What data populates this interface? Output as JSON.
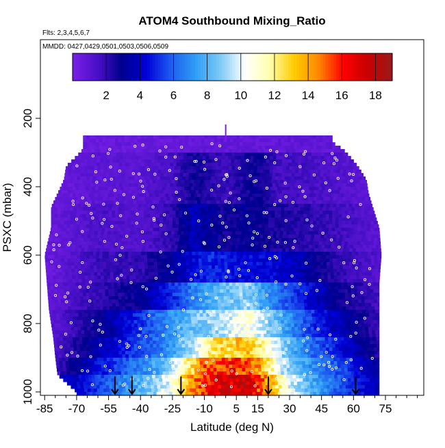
{
  "chart_data": {
    "type": "heatmap",
    "title": "ATOM4 Southbound Mixing_Ratio",
    "annotations": [
      "Flts: 2,3,4,5,6,7",
      "MMDD: 0427,0429,0501,0503,0506,0509"
    ],
    "xlabel": "Latitude (deg N)",
    "ylabel": "PSXC (mbar)",
    "xlim": [
      -87,
      93
    ],
    "ylim": [
      1010,
      -30
    ],
    "x_ticks": [
      -85,
      -70,
      -55,
      -40,
      -25,
      -10,
      5,
      15,
      30,
      45,
      60,
      75
    ],
    "x_tick_labels": [
      "-85",
      "-70",
      "-55",
      "-40",
      "-25",
      "-10",
      "5",
      "15",
      "30",
      "45",
      "60",
      "75"
    ],
    "y_ticks": [
      200,
      400,
      600,
      800,
      1000
    ],
    "y_tick_labels": [
      "200",
      "400",
      "600",
      "800",
      "1000"
    ],
    "colorbar": {
      "range": [
        0,
        19
      ],
      "ticks": [
        2,
        4,
        6,
        8,
        10,
        12,
        14,
        16,
        18
      ],
      "tick_labels": [
        "2",
        "4",
        "6",
        "8",
        "10",
        "12",
        "14",
        "16",
        "18"
      ],
      "colors": [
        "#7a1fe8",
        "#4a10c8",
        "#00008c",
        "#0000d8",
        "#1e5cf0",
        "#2f9ef5",
        "#7cc9f7",
        "#ffffff",
        "#ffffb0",
        "#ffcc00",
        "#ff8800",
        "#ff0000",
        "#c80000",
        "#9a1a1a"
      ]
    },
    "flight_marker_lat": [
      -52,
      -44,
      -21,
      20,
      61
    ],
    "coverage": [
      {
        "p": 270,
        "lat": [
          -67,
          50
        ]
      },
      {
        "p": 290,
        "lat": [
          -67,
          55
        ]
      },
      {
        "p": 310,
        "lat": [
          -70,
          58
        ]
      },
      {
        "p": 340,
        "lat": [
          -75,
          62
        ]
      },
      {
        "p": 380,
        "lat": [
          -76,
          66
        ]
      },
      {
        "p": 420,
        "lat": [
          -79,
          67
        ]
      },
      {
        "p": 460,
        "lat": [
          -82,
          69
        ]
      },
      {
        "p": 520,
        "lat": [
          -82,
          72
        ]
      },
      {
        "p": 600,
        "lat": [
          -85,
          73
        ]
      },
      {
        "p": 680,
        "lat": [
          -84,
          72
        ]
      },
      {
        "p": 760,
        "lat": [
          -83,
          72
        ]
      },
      {
        "p": 840,
        "lat": [
          -81,
          72
        ]
      },
      {
        "p": 900,
        "lat": [
          -80,
          72
        ]
      },
      {
        "p": 950,
        "lat": [
          -79,
          72
        ]
      },
      {
        "p": 1000,
        "lat": [
          -70,
          72
        ]
      }
    ],
    "layers": [
      {
        "p": [
          250,
          300
        ],
        "lat": [
          -67,
          50
        ],
        "profile": [
          [
            -80,
            0.5
          ],
          [
            40,
            0.8
          ]
        ]
      },
      {
        "p": [
          300,
          450
        ],
        "lat": [
          -79,
          67
        ],
        "profile": [
          [
            -85,
            0.6
          ],
          [
            -60,
            0.9
          ],
          [
            -40,
            1.0
          ],
          [
            -25,
            1.6
          ],
          [
            -15,
            2.6
          ],
          [
            0,
            1.8
          ],
          [
            15,
            2.8
          ],
          [
            25,
            1.6
          ],
          [
            40,
            1.5
          ],
          [
            55,
            1.2
          ],
          [
            72,
            0.8
          ]
        ]
      },
      {
        "p": [
          450,
          590
        ],
        "lat": [
          -82,
          72
        ],
        "profile": [
          [
            -85,
            0.5
          ],
          [
            -60,
            1.4
          ],
          [
            -40,
            1.2
          ],
          [
            -25,
            2.0
          ],
          [
            -15,
            3.8
          ],
          [
            0,
            2.6
          ],
          [
            10,
            3.0
          ],
          [
            20,
            2.5
          ],
          [
            35,
            2.2
          ],
          [
            50,
            1.8
          ],
          [
            72,
            1.0
          ]
        ]
      },
      {
        "p": [
          590,
          680
        ],
        "lat": [
          -85,
          73
        ],
        "profile": [
          [
            -85,
            0.5
          ],
          [
            -60,
            1.8
          ],
          [
            -40,
            2.0
          ],
          [
            -25,
            3.2
          ],
          [
            -10,
            5.0
          ],
          [
            5,
            4.5
          ],
          [
            20,
            4.4
          ],
          [
            35,
            3.6
          ],
          [
            50,
            2.2
          ],
          [
            72,
            1.2
          ]
        ]
      },
      {
        "p": [
          680,
          760
        ],
        "lat": [
          -84,
          72
        ],
        "profile": [
          [
            -85,
            0.6
          ],
          [
            -60,
            2.0
          ],
          [
            -40,
            3.0
          ],
          [
            -25,
            5.0
          ],
          [
            -10,
            7.5
          ],
          [
            0,
            8.5
          ],
          [
            10,
            9.0
          ],
          [
            20,
            7.0
          ],
          [
            35,
            5.0
          ],
          [
            50,
            3.0
          ],
          [
            72,
            1.6
          ]
        ]
      },
      {
        "p": [
          760,
          840
        ],
        "lat": [
          -83,
          72
        ],
        "profile": [
          [
            -85,
            0.7
          ],
          [
            -60,
            2.8
          ],
          [
            -45,
            4.5
          ],
          [
            -30,
            6.5
          ],
          [
            -15,
            8.5
          ],
          [
            0,
            9.5
          ],
          [
            10,
            11.0
          ],
          [
            20,
            9.0
          ],
          [
            35,
            6.0
          ],
          [
            50,
            4.0
          ],
          [
            72,
            1.8
          ]
        ]
      },
      {
        "p": [
          840,
          900
        ],
        "lat": [
          -81,
          72
        ],
        "profile": [
          [
            -85,
            0.8
          ],
          [
            -60,
            3.5
          ],
          [
            -45,
            5.0
          ],
          [
            -30,
            6.5
          ],
          [
            -15,
            9.5
          ],
          [
            -5,
            12.5
          ],
          [
            10,
            13.5
          ],
          [
            20,
            11.0
          ],
          [
            35,
            7.0
          ],
          [
            50,
            5.0
          ],
          [
            72,
            2.2
          ]
        ]
      },
      {
        "p": [
          900,
          950
        ],
        "lat": [
          -80,
          72
        ],
        "profile": [
          [
            -85,
            0.9
          ],
          [
            -60,
            4.5
          ],
          [
            -45,
            6.0
          ],
          [
            -30,
            8.0
          ],
          [
            -20,
            11.0
          ],
          [
            -10,
            15.0
          ],
          [
            5,
            16.0
          ],
          [
            15,
            14.5
          ],
          [
            25,
            10.0
          ],
          [
            40,
            7.0
          ],
          [
            55,
            5.5
          ],
          [
            72,
            3.0
          ]
        ]
      },
      {
        "p": [
          950,
          1010
        ],
        "lat": [
          -70,
          72
        ],
        "profile": [
          [
            -70,
            4.0
          ],
          [
            -55,
            6.0
          ],
          [
            -40,
            8.0
          ],
          [
            -25,
            10.5
          ],
          [
            -15,
            14.5
          ],
          [
            -5,
            17.0
          ],
          [
            10,
            17.5
          ],
          [
            20,
            14.0
          ],
          [
            30,
            10.0
          ],
          [
            45,
            7.0
          ],
          [
            60,
            5.0
          ],
          [
            72,
            3.5
          ]
        ]
      }
    ]
  }
}
